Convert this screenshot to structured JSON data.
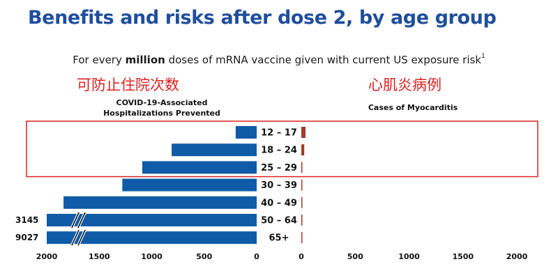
{
  "title": "Benefits and risks after dose 2, by age group",
  "subtitle": {
    "pre": "For every ",
    "bold": "million",
    "post": " doses of mRNA vaccine given with current US exposure risk",
    "sup": "1"
  },
  "annotations": {
    "left_cn": "可防止住院次数",
    "right_cn": "心肌炎病例"
  },
  "colors": {
    "benefit_bar": "#0f5ba7",
    "risk_bar": "#a23b2a",
    "title": "#1f4e9c",
    "highlight_box": "#e02020"
  },
  "chart_data": {
    "type": "bar",
    "categories": [
      "12 – 17",
      "18 – 24",
      "25 – 29",
      "30 – 39",
      "40 – 49",
      "50 – 64",
      "65+"
    ],
    "series": [
      {
        "name": "COVID-19-Associated Hospitalizations Prevented",
        "values": [
          200,
          810,
          1090,
          1280,
          1840,
          3145,
          9027
        ],
        "direction": "left",
        "xlim": [
          0,
          2000
        ],
        "ticks": [
          "2000",
          "1500",
          "1000",
          "500",
          "0"
        ],
        "axis_break": true,
        "printed_value_labels": [
          "",
          "",
          "",
          "",
          "",
          "3145",
          "9027"
        ]
      },
      {
        "name": "Cases of Myocarditis",
        "values": [
          39,
          27,
          8,
          5,
          2,
          2,
          1
        ],
        "direction": "right",
        "xlim": [
          0,
          2000
        ],
        "ticks": [
          "0",
          "500",
          "1000",
          "1500",
          "2000"
        ]
      }
    ],
    "highlighted_categories": [
      "12 – 17",
      "18 – 24",
      "25 – 29"
    ]
  }
}
